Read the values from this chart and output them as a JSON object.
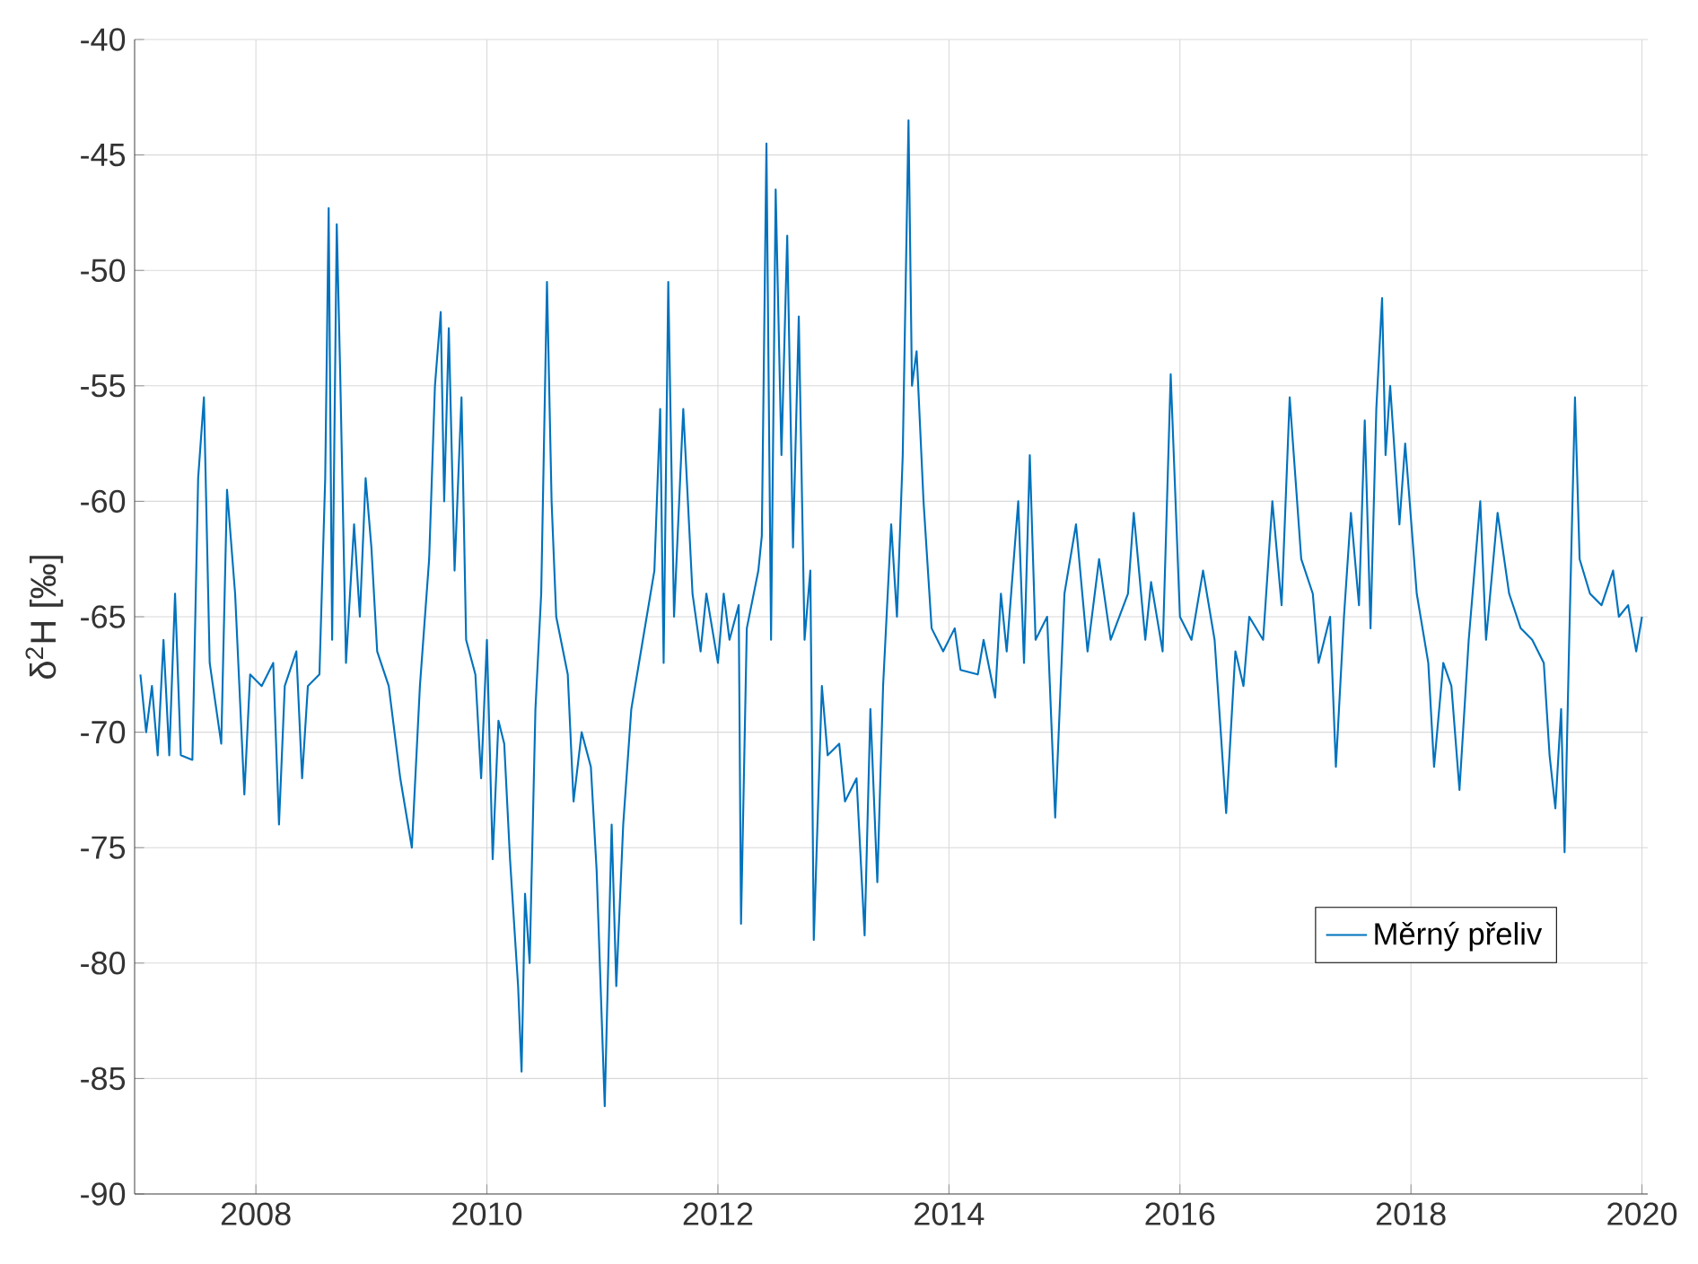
{
  "chart_data": {
    "type": "line",
    "ylabel": "δ$^{2}$H [‰]",
    "x": [
      2007.0,
      2007.05,
      2007.1,
      2007.15,
      2007.2,
      2007.25,
      2007.3,
      2007.35,
      2007.45,
      2007.5,
      2007.55,
      2007.6,
      2007.7,
      2007.75,
      2007.82,
      2007.9,
      2007.95,
      2008.05,
      2008.15,
      2008.2,
      2008.25,
      2008.35,
      2008.4,
      2008.45,
      2008.55,
      2008.6,
      2008.63,
      2008.66,
      2008.7,
      2008.73,
      2008.78,
      2008.85,
      2008.9,
      2008.95,
      2009.0,
      2009.05,
      2009.15,
      2009.25,
      2009.35,
      2009.42,
      2009.5,
      2009.55,
      2009.6,
      2009.63,
      2009.67,
      2009.72,
      2009.78,
      2009.82,
      2009.9,
      2009.95,
      2010.0,
      2010.05,
      2010.1,
      2010.15,
      2010.2,
      2010.27,
      2010.3,
      2010.33,
      2010.37,
      2010.42,
      2010.47,
      2010.52,
      2010.56,
      2010.6,
      2010.7,
      2010.75,
      2010.82,
      2010.9,
      2010.95,
      2011.02,
      2011.08,
      2011.12,
      2011.18,
      2011.25,
      2011.35,
      2011.45,
      2011.5,
      2011.53,
      2011.57,
      2011.62,
      2011.7,
      2011.78,
      2011.85,
      2011.9,
      2012.0,
      2012.05,
      2012.1,
      2012.18,
      2012.2,
      2012.25,
      2012.35,
      2012.38,
      2012.42,
      2012.46,
      2012.5,
      2012.55,
      2012.6,
      2012.65,
      2012.7,
      2012.75,
      2012.8,
      2012.83,
      2012.9,
      2012.95,
      2013.05,
      2013.1,
      2013.2,
      2013.27,
      2013.32,
      2013.38,
      2013.43,
      2013.5,
      2013.55,
      2013.6,
      2013.65,
      2013.68,
      2013.72,
      2013.78,
      2013.85,
      2013.95,
      2014.05,
      2014.1,
      2014.25,
      2014.3,
      2014.4,
      2014.45,
      2014.5,
      2014.6,
      2014.65,
      2014.7,
      2014.75,
      2014.85,
      2014.92,
      2015.0,
      2015.1,
      2015.2,
      2015.3,
      2015.4,
      2015.55,
      2015.6,
      2015.7,
      2015.75,
      2015.85,
      2015.92,
      2016.0,
      2016.1,
      2016.2,
      2016.3,
      2016.4,
      2016.48,
      2016.55,
      2016.6,
      2016.72,
      2016.8,
      2016.88,
      2016.95,
      2017.05,
      2017.15,
      2017.2,
      2017.3,
      2017.35,
      2017.42,
      2017.48,
      2017.55,
      2017.6,
      2017.65,
      2017.7,
      2017.75,
      2017.78,
      2017.82,
      2017.9,
      2017.95,
      2018.05,
      2018.15,
      2018.2,
      2018.28,
      2018.35,
      2018.42,
      2018.5,
      2018.6,
      2018.65,
      2018.75,
      2018.85,
      2018.95,
      2019.05,
      2019.15,
      2019.2,
      2019.25,
      2019.3,
      2019.33,
      2019.37,
      2019.42,
      2019.46,
      2019.55,
      2019.65,
      2019.75,
      2019.8,
      2019.88,
      2019.95,
      2020.0
    ],
    "series": [
      {
        "name": "Měrný přeliv",
        "color": "#0072bd",
        "values": [
          -67.5,
          -70,
          -68,
          -71,
          -66,
          -71,
          -64,
          -71,
          -71.2,
          -59,
          -55.5,
          -67,
          -70.5,
          -59.5,
          -64,
          -72.7,
          -67.5,
          -68,
          -67,
          -74,
          -68,
          -66.5,
          -72,
          -68,
          -67.5,
          -59,
          -47.3,
          -66,
          -48,
          -54.5,
          -67,
          -61,
          -65,
          -59,
          -62,
          -66.5,
          -68,
          -72,
          -75,
          -68,
          -62.5,
          -55,
          -51.8,
          -60,
          -52.5,
          -63,
          -55.5,
          -66,
          -67.5,
          -72,
          -66,
          -75.5,
          -69.5,
          -70.5,
          -75.5,
          -81,
          -84.7,
          -77,
          -80,
          -69,
          -64,
          -50.5,
          -60,
          -65,
          -67.5,
          -73,
          -70,
          -71.5,
          -76,
          -86.2,
          -74,
          -81,
          -74,
          -69,
          -66,
          -63,
          -56,
          -67,
          -50.5,
          -65,
          -56,
          -64,
          -66.5,
          -64,
          -67,
          -64,
          -66,
          -64.5,
          -78.3,
          -65.5,
          -63,
          -61.5,
          -44.5,
          -66,
          -46.5,
          -58,
          -48.5,
          -62,
          -52,
          -66,
          -63,
          -79,
          -68,
          -71,
          -70.5,
          -73,
          -72,
          -78.8,
          -69,
          -76.5,
          -68,
          -61,
          -65,
          -58,
          -43.5,
          -55,
          -53.5,
          -60,
          -65.5,
          -66.5,
          -65.5,
          -67.3,
          -67.5,
          -66,
          -68.5,
          -64,
          -66.5,
          -60,
          -67,
          -58,
          -66,
          -65,
          -73.7,
          -64,
          -61,
          -66.5,
          -62.5,
          -66,
          -64,
          -60.5,
          -66,
          -63.5,
          -66.5,
          -54.5,
          -65,
          -66,
          -63,
          -66,
          -73.5,
          -66.5,
          -68,
          -65,
          -66,
          -60,
          -64.5,
          -55.5,
          -62.5,
          -64,
          -67,
          -65,
          -71.5,
          -65,
          -60.5,
          -64.5,
          -56.5,
          -65.5,
          -56,
          -51.2,
          -58,
          -55,
          -61,
          -57.5,
          -64,
          -67,
          -71.5,
          -67,
          -68,
          -72.5,
          -66,
          -60,
          -66,
          -60.5,
          -64,
          -65.5,
          -66,
          -67,
          -71,
          -73.3,
          -69,
          -75.2,
          -66,
          -55.5,
          -62.5,
          -64,
          -64.5,
          -63,
          -65,
          -64.5,
          -66.5,
          -65
        ]
      }
    ],
    "xlim": [
      2006.95,
      2020.05
    ],
    "ylim": [
      -90,
      -40
    ],
    "xticks": [
      2008,
      2010,
      2012,
      2014,
      2016,
      2018,
      2020
    ],
    "yticks": [
      -90,
      -85,
      -80,
      -75,
      -70,
      -65,
      -60,
      -55,
      -50,
      -45,
      -40
    ],
    "grid": true,
    "legend": "bottom right",
    "marker": "none",
    "line_style": "solid"
  }
}
